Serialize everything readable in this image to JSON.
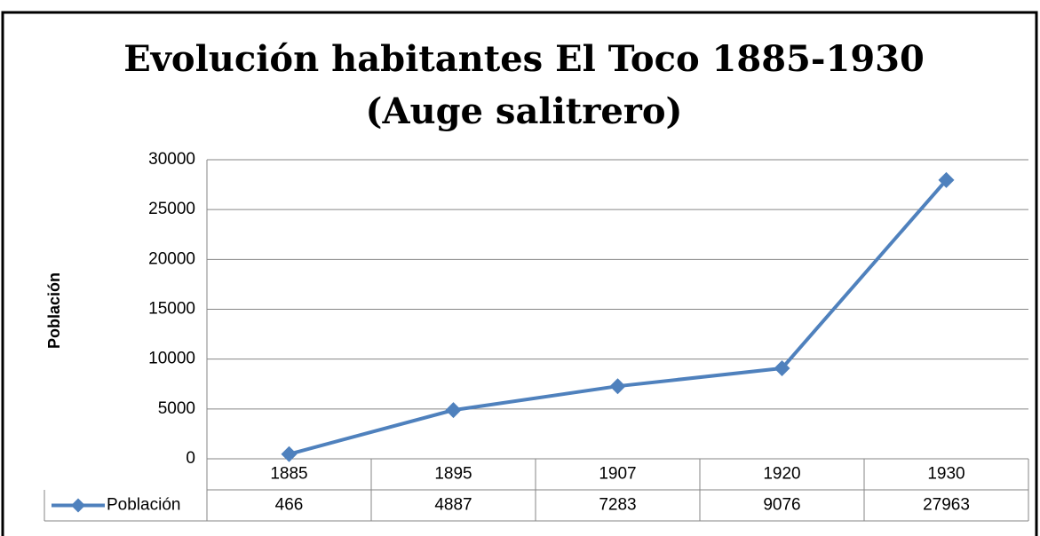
{
  "chart_data": {
    "type": "line",
    "title": "Evolución habitantes El Toco 1885-1930",
    "subtitle": "(Auge salitrero)",
    "y_axis_label": "Población",
    "categories": [
      "1885",
      "1895",
      "1907",
      "1920",
      "1930"
    ],
    "series": [
      {
        "name": "Población",
        "color": "#4f81bd",
        "values": [
          466,
          4887,
          7283,
          9076,
          27963
        ]
      }
    ],
    "ylim": [
      0,
      30000
    ],
    "yticks": [
      0,
      5000,
      10000,
      15000,
      20000,
      25000,
      30000
    ],
    "grid": true,
    "legend": "bottom"
  }
}
